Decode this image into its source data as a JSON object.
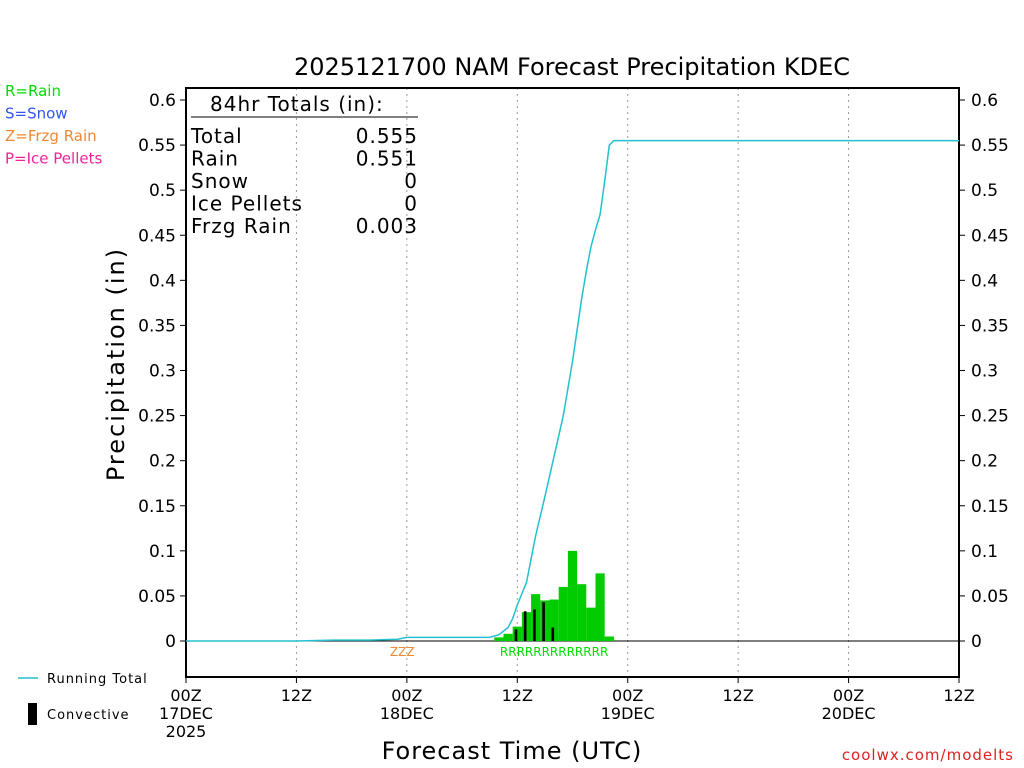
{
  "chart_data": {
    "type": "bar",
    "title": "2025121700 NAM Forecast Precipitation KDEC",
    "ylabel": "Precipitation (in)",
    "xlabel": "Forecast Time (UTC)",
    "ylim": [
      -0.04,
      0.61
    ],
    "xlim_hours": [
      0,
      84
    ],
    "grid": "vertical-dotted",
    "yticks": [
      "0",
      "0.05",
      "0.1",
      "0.15",
      "0.2",
      "0.25",
      "0.3",
      "0.35",
      "0.4",
      "0.45",
      "0.5",
      "0.55",
      "0.6"
    ],
    "ytick_values": [
      0,
      0.05,
      0.1,
      0.15,
      0.2,
      0.25,
      0.3,
      0.35,
      0.4,
      0.45,
      0.5,
      0.55,
      0.6
    ],
    "xticks": [
      {
        "hour": 0,
        "lines": [
          "00Z",
          "17DEC",
          "2025"
        ]
      },
      {
        "hour": 12,
        "lines": [
          "12Z"
        ]
      },
      {
        "hour": 24,
        "lines": [
          "00Z",
          "18DEC"
        ]
      },
      {
        "hour": 36,
        "lines": [
          "12Z"
        ]
      },
      {
        "hour": 48,
        "lines": [
          "00Z",
          "19DEC"
        ]
      },
      {
        "hour": 60,
        "lines": [
          "12Z"
        ]
      },
      {
        "hour": 72,
        "lines": [
          "00Z",
          "20DEC"
        ]
      },
      {
        "hour": 84,
        "lines": [
          "12Z"
        ]
      }
    ],
    "legend_ptype": [
      {
        "label": "R=Rain",
        "color": "#00dd00"
      },
      {
        "label": "S=Snow",
        "color": "#3355ee"
      },
      {
        "label": "Z=Frzg Rain",
        "color": "#ee8833"
      },
      {
        "label": "P=Ice Pellets",
        "color": "#ee2299"
      }
    ],
    "legend_series": [
      {
        "label": "Running Total",
        "color": "#22c0d0",
        "kind": "line"
      },
      {
        "label": "Convective",
        "color": "#000000",
        "kind": "bar"
      }
    ],
    "totals": {
      "header": "84hr Totals (in):",
      "rows": [
        {
          "label": "Total",
          "value": "0.555"
        },
        {
          "label": "Rain",
          "value": "0.551"
        },
        {
          "label": "Snow",
          "value": "0"
        },
        {
          "label": "Ice Pellets",
          "value": "0"
        },
        {
          "label": "Frzg Rain",
          "value": "0.003"
        }
      ]
    },
    "series": [
      {
        "name": "Running Total",
        "kind": "line",
        "color": "#22c0d0",
        "x": [
          0,
          12,
          16,
          20,
          23,
          24,
          30,
          33,
          34,
          35,
          35.5,
          36,
          37,
          38,
          39,
          40,
          41,
          42,
          43,
          43.5,
          44,
          44.5,
          45,
          45.5,
          46,
          46.5,
          47,
          84
        ],
        "y": [
          0,
          0,
          0.001,
          0.001,
          0.002,
          0.004,
          0.004,
          0.004,
          0.007,
          0.015,
          0.025,
          0.04,
          0.065,
          0.117,
          0.16,
          0.205,
          0.25,
          0.31,
          0.38,
          0.41,
          0.437,
          0.456,
          0.473,
          0.51,
          0.55,
          0.555,
          0.555,
          0.555
        ]
      },
      {
        "name": "Total Precip",
        "kind": "bar",
        "color": "#00cc00",
        "start": [
          33.5,
          34.5,
          35.5,
          36.5,
          37.5,
          38.5,
          39.5,
          40.5,
          41.5,
          42.5,
          43.5,
          44.5,
          45.5
        ],
        "values": [
          0.004,
          0.008,
          0.016,
          0.032,
          0.052,
          0.045,
          0.046,
          0.06,
          0.1,
          0.063,
          0.037,
          0.075,
          0.005
        ]
      },
      {
        "name": "Convective",
        "kind": "bar",
        "color": "#000000",
        "start": [
          35.5,
          36.5,
          37.5,
          38.5,
          39.5
        ],
        "values": [
          0.013,
          0.033,
          0.035,
          0.043,
          0.015
        ]
      }
    ],
    "ptype_markers": [
      {
        "text": "ZZZ",
        "color": "#ee8833",
        "center_hour": 23.5
      },
      {
        "text": "RRRRRRRRRRRRR",
        "color": "#00dd00",
        "center_hour": 40
      }
    ],
    "credit": "coolwx.com/modelts"
  }
}
